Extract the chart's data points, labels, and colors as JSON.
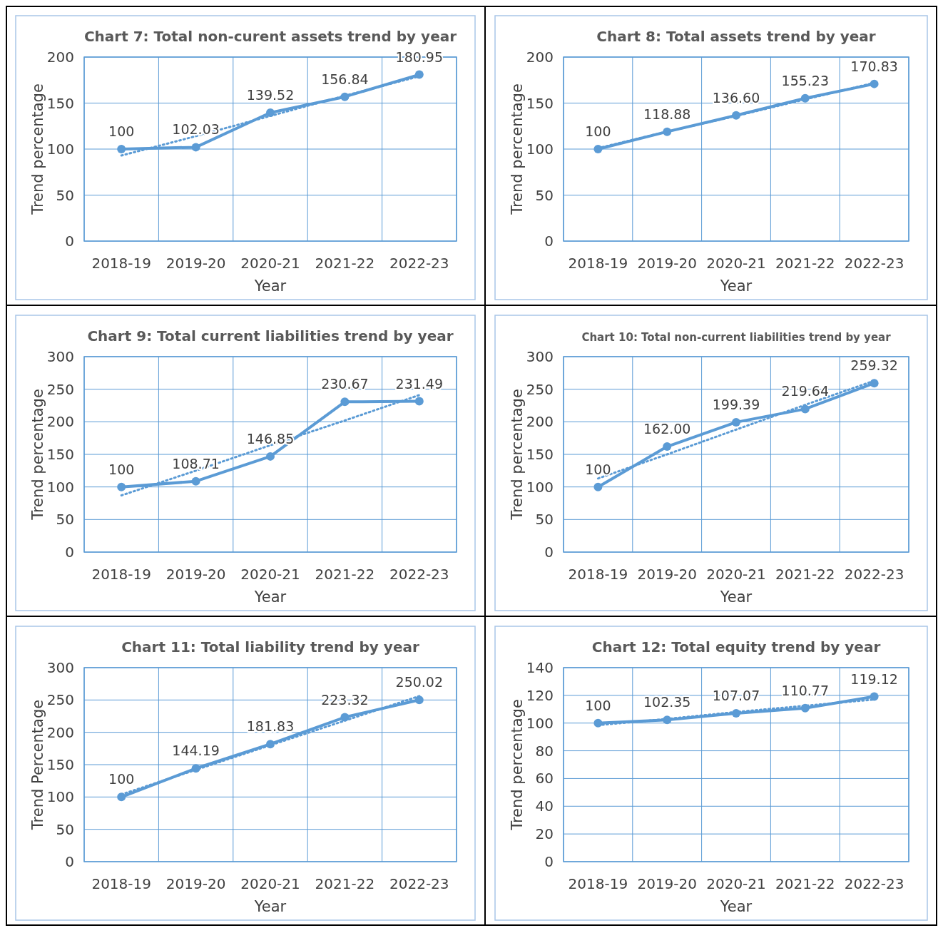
{
  "chart_data": [
    {
      "type": "line",
      "title": "Chart 7: Total non-curent assets trend by year",
      "xlabel": "Year",
      "ylabel": "Trend percentage",
      "categories": [
        "2018-19",
        "2019-20",
        "2020-21",
        "2021-22",
        "2022-23"
      ],
      "ylim": [
        0,
        200
      ],
      "yticks": [
        0,
        50,
        100,
        150,
        200
      ],
      "grid": true,
      "series": [
        {
          "color": "#5b9bd5",
          "values": [
            100,
            102.03,
            139.52,
            156.84,
            180.95
          ],
          "value_labels": [
            "100",
            "102.03",
            "139.52",
            "156.84",
            "180.95"
          ],
          "marker": "circle",
          "line_style": "solid"
        },
        {
          "type": "line",
          "color": "#5b9bd5",
          "values": [
            93,
            114,
            136,
            158,
            179
          ],
          "marker": "none",
          "line_style": "dotted"
        }
      ]
    },
    {
      "type": "line",
      "title": "Chart 8: Total assets trend by year",
      "xlabel": "Year",
      "ylabel": "Trend percentage",
      "categories": [
        "2018-19",
        "2019-20",
        "2020-21",
        "2021-22",
        "2022-23"
      ],
      "ylim": [
        0,
        200
      ],
      "yticks": [
        0,
        50,
        100,
        150,
        200
      ],
      "grid": true,
      "series": [
        {
          "color": "#5b9bd5",
          "values": [
            100,
            118.88,
            136.6,
            155.23,
            170.83
          ],
          "value_labels": [
            "100",
            "118.88",
            "136.60",
            "155.23",
            "170.83"
          ],
          "marker": "circle",
          "line_style": "solid"
        },
        {
          "type": "line",
          "color": "#5b9bd5",
          "values": [
            101,
            119,
            136,
            154,
            172
          ],
          "marker": "none",
          "line_style": "dotted"
        }
      ]
    },
    {
      "type": "line",
      "title": "Chart 9: Total current liabilities trend by year",
      "xlabel": "Year",
      "ylabel": "Trend percentage",
      "categories": [
        "2018-19",
        "2019-20",
        "2020-21",
        "2021-22",
        "2022-23"
      ],
      "ylim": [
        0,
        300
      ],
      "yticks": [
        0,
        50,
        100,
        150,
        200,
        250,
        300
      ],
      "grid": true,
      "series": [
        {
          "color": "#5b9bd5",
          "values": [
            100,
            108.71,
            146.85,
            230.67,
            231.49
          ],
          "value_labels": [
            "100",
            "108.71",
            "146.85",
            "230.67",
            "231.49"
          ],
          "marker": "circle",
          "line_style": "solid"
        },
        {
          "type": "line",
          "color": "#5b9bd5",
          "values": [
            87,
            125,
            164,
            202,
            241
          ],
          "marker": "none",
          "line_style": "dotted"
        }
      ]
    },
    {
      "type": "line",
      "title": "Chart 10: Total non-current liabilities trend by year",
      "xlabel": "Year",
      "ylabel": "Trend percentage",
      "categories": [
        "2018-19",
        "2019-20",
        "2020-21",
        "2021-22",
        "2022-23"
      ],
      "ylim": [
        0,
        300
      ],
      "yticks": [
        0,
        50,
        100,
        150,
        200,
        250,
        300
      ],
      "grid": true,
      "series": [
        {
          "color": "#5b9bd5",
          "values": [
            100,
            162,
            199.39,
            219.64,
            259.32
          ],
          "value_labels": [
            "100",
            "162.00",
            "199.39",
            "219.64",
            "259.32"
          ],
          "marker": "circle",
          "line_style": "solid"
        },
        {
          "type": "line",
          "color": "#5b9bd5",
          "values": [
            113,
            150,
            188,
            226,
            263
          ],
          "marker": "none",
          "line_style": "dotted"
        }
      ]
    },
    {
      "type": "line",
      "title": "Chart 11: Total liability trend by year",
      "xlabel": "Year",
      "ylabel": "Trend Percentage",
      "categories": [
        "2018-19",
        "2019-20",
        "2020-21",
        "2021-22",
        "2022-23"
      ],
      "ylim": [
        0,
        300
      ],
      "yticks": [
        0,
        50,
        100,
        150,
        200,
        250,
        300
      ],
      "grid": true,
      "series": [
        {
          "color": "#5b9bd5",
          "values": [
            100,
            144.19,
            181.83,
            223.32,
            250.02
          ],
          "value_labels": [
            "100",
            "144.19",
            "181.83",
            "223.32",
            "250.02"
          ],
          "marker": "circle",
          "line_style": "solid"
        },
        {
          "type": "line",
          "color": "#5b9bd5",
          "values": [
            104,
            142,
            180,
            218,
            256
          ],
          "marker": "none",
          "line_style": "dotted"
        }
      ]
    },
    {
      "type": "line",
      "title": "Chart 12: Total equity trend by year",
      "xlabel": "Year",
      "ylabel": "Trend percentage",
      "categories": [
        "2018-19",
        "2019-20",
        "2020-21",
        "2021-22",
        "2022-23"
      ],
      "ylim": [
        0,
        140
      ],
      "yticks": [
        0,
        20,
        40,
        60,
        80,
        100,
        120,
        140
      ],
      "grid": true,
      "series": [
        {
          "color": "#5b9bd5",
          "values": [
            100,
            102.35,
            107.07,
            110.77,
            119.12
          ],
          "value_labels": [
            "100",
            "102.35",
            "107.07",
            "110.77",
            "119.12"
          ],
          "marker": "circle",
          "line_style": "solid"
        },
        {
          "type": "line",
          "color": "#5b9bd5",
          "values": [
            98.5,
            103,
            108,
            112.5,
            117
          ],
          "marker": "none",
          "line_style": "dotted"
        }
      ]
    }
  ]
}
